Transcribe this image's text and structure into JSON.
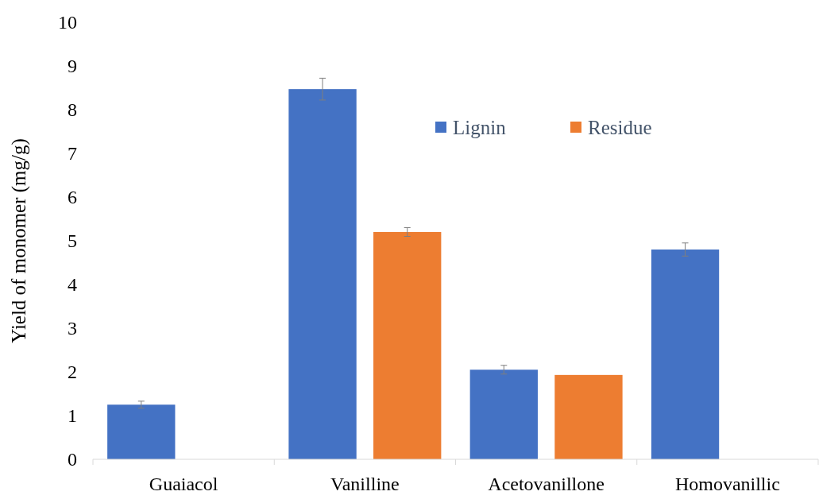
{
  "chart_data": {
    "type": "bar",
    "ylabel": "Yield  of monomer (mg/g)",
    "categories": [
      "Guaiacol",
      "Vanilline",
      "Acetovanillone",
      "Homovanillic"
    ],
    "series": [
      {
        "name": "Lignin",
        "color": "#4472c4",
        "values": [
          1.25,
          8.47,
          2.05,
          4.8
        ],
        "errors": [
          0.08,
          0.25,
          0.1,
          0.15
        ]
      },
      {
        "name": "Residue",
        "color": "#ed7d31",
        "values": [
          null,
          5.2,
          1.93,
          null
        ],
        "errors": [
          null,
          0.1,
          null,
          null
        ]
      }
    ],
    "ylim": [
      0,
      10
    ],
    "yticks": [
      0,
      1,
      2,
      3,
      4,
      5,
      6,
      7,
      8,
      9,
      10
    ],
    "grid": false,
    "legend": "top"
  }
}
